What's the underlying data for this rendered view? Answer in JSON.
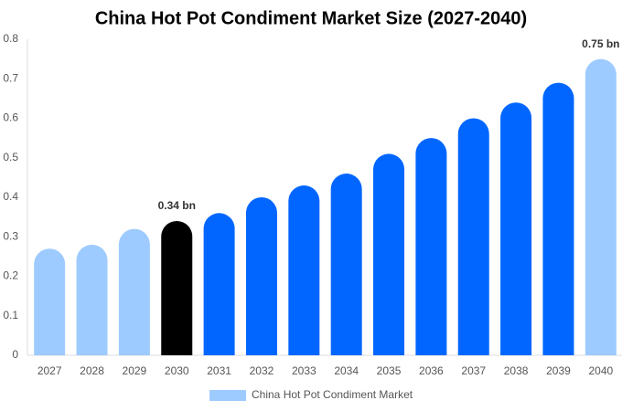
{
  "chart_data": {
    "type": "bar",
    "title": "China Hot Pot Condiment Market Size (2027-2040)",
    "categories": [
      "2027",
      "2028",
      "2029",
      "2030",
      "2031",
      "2032",
      "2033",
      "2034",
      "2035",
      "2036",
      "2037",
      "2038",
      "2039",
      "2040"
    ],
    "series": [
      {
        "name": "China Hot Pot Condiment Market",
        "color": "#9ecbff",
        "values": [
          0.27,
          0.28,
          0.32,
          0.34,
          0.36,
          0.4,
          0.43,
          0.46,
          0.51,
          0.55,
          0.6,
          0.64,
          0.69,
          0.75
        ],
        "value_labels": [
          null,
          null,
          null,
          "0.34 bn",
          null,
          null,
          null,
          null,
          null,
          null,
          null,
          null,
          null,
          "0.75 bn"
        ],
        "colors": [
          "#9ecbff",
          "#9ecbff",
          "#9ecbff",
          "#000000",
          "#0066ff",
          "#0066ff",
          "#0066ff",
          "#0066ff",
          "#0066ff",
          "#0066ff",
          "#0066ff",
          "#0066ff",
          "#0066ff",
          "#9ecbff"
        ]
      }
    ],
    "ylim": [
      0,
      0.8
    ],
    "yticks": [
      0,
      0.1,
      0.2,
      0.3,
      0.4,
      0.5,
      0.6,
      0.7,
      0.8
    ],
    "grid": false,
    "legend": "bottom"
  }
}
